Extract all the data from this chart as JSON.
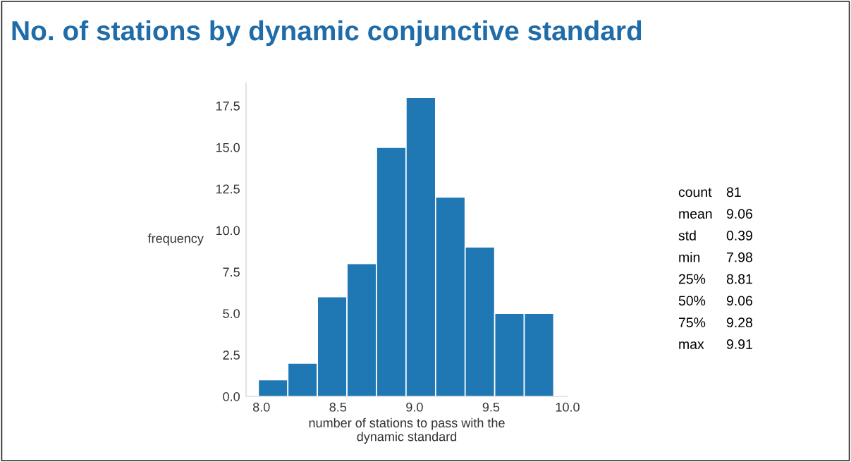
{
  "chart_data": {
    "type": "histogram",
    "title": "No. of stations by dynamic conjunctive standard",
    "xlabel": "number of stations to pass with the\ndynamic standard",
    "ylabel": "frequency",
    "bins": [
      7.98,
      8.173,
      8.366,
      8.559,
      8.752,
      8.945,
      9.138,
      9.331,
      9.524,
      9.717,
      9.91
    ],
    "values": [
      1,
      2,
      6,
      8,
      15,
      18,
      12,
      9,
      5,
      5
    ],
    "color": "#1f77b4",
    "xlim": [
      7.9,
      10.0
    ],
    "xticks": [
      {
        "value": 8,
        "label": "8.0"
      },
      8.5,
      {
        "value": 9,
        "label": "9.0"
      },
      9.5,
      {
        "value": 10,
        "label": "10.0"
      }
    ],
    "ylim": [
      0,
      18.9
    ],
    "yticks": [
      {
        "value": 0,
        "label": "0.0"
      },
      2.5,
      {
        "value": 5,
        "label": "5.0"
      },
      7.5,
      {
        "value": 10,
        "label": "10.0"
      },
      12.5,
      {
        "value": 15,
        "label": "15.0"
      },
      17.5
    ],
    "annotations": [
      "count 81",
      "mean 9.06",
      "std 0.39",
      "min 7.98",
      "25% 8.81",
      "50% 9.06",
      "75% 9.28",
      "max 9.91"
    ],
    "grid": false,
    "legend": false
  }
}
